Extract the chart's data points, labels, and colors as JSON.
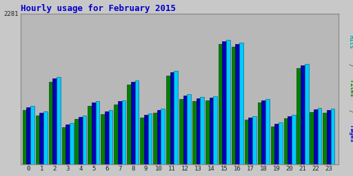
{
  "title": "Hourly usage for February 2015",
  "title_color": "#0000cc",
  "hours": [
    0,
    1,
    2,
    3,
    4,
    5,
    6,
    7,
    8,
    9,
    10,
    11,
    12,
    13,
    14,
    15,
    16,
    17,
    18,
    19,
    20,
    21,
    22,
    23
  ],
  "pages": [
    820,
    740,
    1250,
    560,
    680,
    880,
    760,
    900,
    1200,
    710,
    780,
    1340,
    990,
    960,
    970,
    1820,
    1780,
    670,
    930,
    570,
    690,
    1460,
    790,
    780
  ],
  "files": [
    860,
    780,
    1300,
    600,
    720,
    930,
    800,
    950,
    1250,
    750,
    820,
    1390,
    1040,
    1000,
    1010,
    1860,
    1820,
    710,
    970,
    610,
    730,
    1500,
    830,
    820
  ],
  "hits": [
    880,
    800,
    1320,
    620,
    740,
    950,
    820,
    970,
    1270,
    770,
    840,
    1410,
    1060,
    1020,
    1030,
    1880,
    1840,
    730,
    990,
    630,
    750,
    1520,
    850,
    840
  ],
  "ymax": 2281,
  "bar_color_pages": "#008000",
  "bar_color_files": "#0000bb",
  "bar_color_hits": "#00ccff",
  "bar_width": 0.3,
  "bg_color": "#c8c8c8",
  "plot_bg_color": "#b8b8b8",
  "grid_color": "#aaaaaa",
  "axis_label_color": "#222222",
  "border_color": "#888888",
  "right_label_pages_color": "#0000cc",
  "right_label_files_color": "#008800",
  "right_label_hits_color": "#00aaaa"
}
